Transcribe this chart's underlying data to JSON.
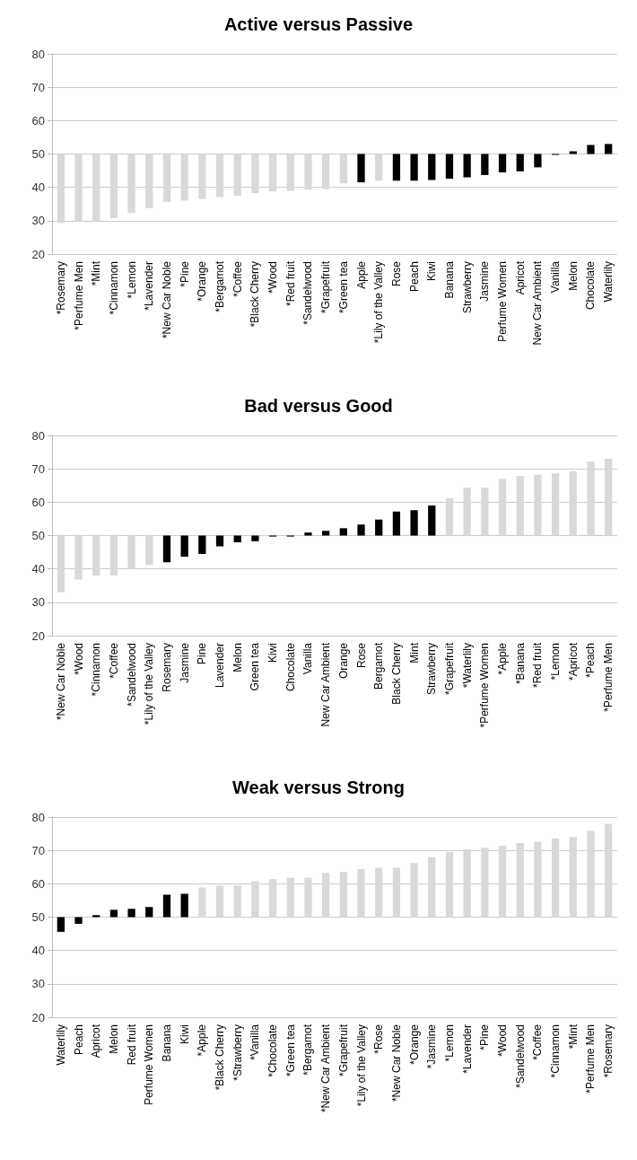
{
  "chart_data": [
    {
      "type": "bar",
      "title": "Active versus Passive",
      "categories": [
        "*Rosemary",
        "*Perfume Men",
        "*Mint",
        "*Cinnamon",
        "*Lemon",
        "*Lavender",
        "*New Car Noble",
        "*Pine",
        "*Orange",
        "*Bergamot",
        "*Coffee",
        "*Black Cherry",
        "*Wood",
        "*Red fruit",
        "*Sandelwood",
        "*Grapefruit",
        "*Green tea",
        "Apple",
        "*Lily of the Valley",
        "Rose",
        "Peach",
        "Kiwi",
        "Banana",
        "Strawberry",
        "Jasmine",
        "Perfume Women",
        "Apricot",
        "New Car Ambient",
        "Vanilla",
        "Melon",
        "Chocolate",
        "Waterlily"
      ],
      "base": [
        50,
        50,
        50,
        50,
        50,
        50,
        50,
        50,
        50,
        50,
        50,
        50,
        50,
        50,
        50,
        50,
        50,
        50,
        50,
        50,
        50,
        50,
        50,
        50,
        50,
        50,
        50,
        50,
        50,
        50,
        50,
        50
      ],
      "values": [
        -20.7,
        -20.3,
        -20,
        -19.2,
        -17.7,
        -16.2,
        -14.4,
        -14,
        -13.5,
        -12.9,
        -12.5,
        -11.7,
        -11.2,
        -11,
        -10.7,
        -10.6,
        -8.8,
        -8.5,
        -8,
        -8,
        -8,
        -7.8,
        -7.4,
        -7,
        -6.3,
        -5.5,
        -5.2,
        -4,
        -0.2,
        0.8,
        2.7,
        3
      ],
      "colors": [
        "#d9d9d9",
        "#d9d9d9",
        "#d9d9d9",
        "#d9d9d9",
        "#d9d9d9",
        "#d9d9d9",
        "#d9d9d9",
        "#d9d9d9",
        "#d9d9d9",
        "#d9d9d9",
        "#d9d9d9",
        "#d9d9d9",
        "#d9d9d9",
        "#d9d9d9",
        "#d9d9d9",
        "#d9d9d9",
        "#d9d9d9",
        "#000000",
        "#d9d9d9",
        "#000000",
        "#000000",
        "#000000",
        "#000000",
        "#000000",
        "#000000",
        "#000000",
        "#000000",
        "#000000",
        "#000000",
        "#000000",
        "#000000",
        "#000000"
      ],
      "ylim": [
        20,
        80
      ],
      "yticks": [
        20,
        30,
        40,
        50,
        60,
        70,
        80
      ],
      "grid": "y"
    },
    {
      "type": "bar",
      "title": "Bad versus Good",
      "categories": [
        "*New Car Noble",
        "*Wood",
        "*Cinnamon",
        "*Coffee",
        "*Sandelwood",
        "*Lily of the Valley",
        "Rosemary",
        "Jasmine",
        "Pine",
        "Lavender",
        "Melon",
        "Green tea",
        "Kiwi",
        "Chocolate",
        "Vanilla",
        "New Car Ambient",
        "Orange",
        "Rose",
        "Bergamot",
        "Black Cherry",
        "Mint",
        "Strawberry",
        "*Grapefruit",
        "*Waterlily",
        "*Perfume Women",
        "*Apple",
        "*Banana",
        "*Red fruit",
        "*Lemon",
        "*Apricot",
        "*Peach",
        "*Perfume Men"
      ],
      "base": [
        50,
        50,
        50,
        50,
        50,
        50,
        50,
        50,
        50,
        50,
        50,
        50,
        50,
        50,
        50,
        50,
        50,
        50,
        50,
        50,
        50,
        50,
        50,
        50,
        50,
        50,
        50,
        50,
        50,
        50,
        50,
        50
      ],
      "values": [
        -17,
        -13.2,
        -12,
        -12,
        -10,
        -8.8,
        -8,
        -6.3,
        -5.5,
        -3.2,
        -2,
        -1.7,
        -0.3,
        -0.3,
        0.9,
        1.4,
        2.2,
        3.3,
        4.8,
        7.2,
        7.6,
        9,
        11.2,
        14.4,
        14.4,
        17,
        17.9,
        18.2,
        18.6,
        19.3,
        22.2,
        23
      ],
      "colors": [
        "#d9d9d9",
        "#d9d9d9",
        "#d9d9d9",
        "#d9d9d9",
        "#d9d9d9",
        "#d9d9d9",
        "#000000",
        "#000000",
        "#000000",
        "#000000",
        "#000000",
        "#000000",
        "#000000",
        "#000000",
        "#000000",
        "#000000",
        "#000000",
        "#000000",
        "#000000",
        "#000000",
        "#000000",
        "#000000",
        "#d9d9d9",
        "#d9d9d9",
        "#d9d9d9",
        "#d9d9d9",
        "#d9d9d9",
        "#d9d9d9",
        "#d9d9d9",
        "#d9d9d9",
        "#d9d9d9",
        "#d9d9d9"
      ],
      "ylim": [
        20,
        80
      ],
      "yticks": [
        20,
        30,
        40,
        50,
        60,
        70,
        80
      ],
      "grid": "y"
    },
    {
      "type": "bar",
      "title": "Weak versus Strong",
      "categories": [
        "Waterlily",
        "Peach",
        "Apricot",
        "Melon",
        "Red fruit",
        "Perfume Women",
        "Banana",
        "Kiwi",
        "*Apple",
        "*Black Cherry",
        "*Strawberry",
        "*Vanilla",
        "*Chocolate",
        "*Green tea",
        "*Bergamot",
        "*New Car Ambient",
        "*Grapefruit",
        "*Lily of the Valley",
        "*Rose",
        "*New Car Noble",
        "*Orange",
        "*Jasmine",
        "*Lemon",
        "*Lavender",
        "*Pine",
        "*Wood",
        "*Sandelwood",
        "*Coffee",
        "*Cinnamon",
        "*Mint",
        "*Perfume Men",
        "*Rosemary"
      ],
      "base": [
        50,
        50,
        50,
        50,
        50,
        50,
        50,
        50,
        50,
        50,
        50,
        50,
        50,
        50,
        50,
        50,
        50,
        50,
        50,
        50,
        50,
        50,
        50,
        50,
        50,
        50,
        50,
        50,
        50,
        50,
        50,
        50
      ],
      "values": [
        -4.4,
        -2,
        0.6,
        2.2,
        2.5,
        3,
        6.7,
        7,
        8.9,
        9.5,
        9.5,
        10.8,
        11.4,
        11.8,
        11.8,
        13.3,
        13.6,
        14.4,
        14.8,
        14.8,
        16.2,
        18,
        19.5,
        20.3,
        20.8,
        21.4,
        22.2,
        22.6,
        23.6,
        24,
        25.8,
        27.9
      ],
      "colors": [
        "#000000",
        "#000000",
        "#000000",
        "#000000",
        "#000000",
        "#000000",
        "#000000",
        "#000000",
        "#d9d9d9",
        "#d9d9d9",
        "#d9d9d9",
        "#d9d9d9",
        "#d9d9d9",
        "#d9d9d9",
        "#d9d9d9",
        "#d9d9d9",
        "#d9d9d9",
        "#d9d9d9",
        "#d9d9d9",
        "#d9d9d9",
        "#d9d9d9",
        "#d9d9d9",
        "#d9d9d9",
        "#d9d9d9",
        "#d9d9d9",
        "#d9d9d9",
        "#d9d9d9",
        "#d9d9d9",
        "#d9d9d9",
        "#d9d9d9",
        "#d9d9d9",
        "#d9d9d9"
      ],
      "ylim": [
        20,
        80
      ],
      "yticks": [
        20,
        30,
        40,
        50,
        60,
        70,
        80
      ],
      "grid": "y"
    }
  ]
}
